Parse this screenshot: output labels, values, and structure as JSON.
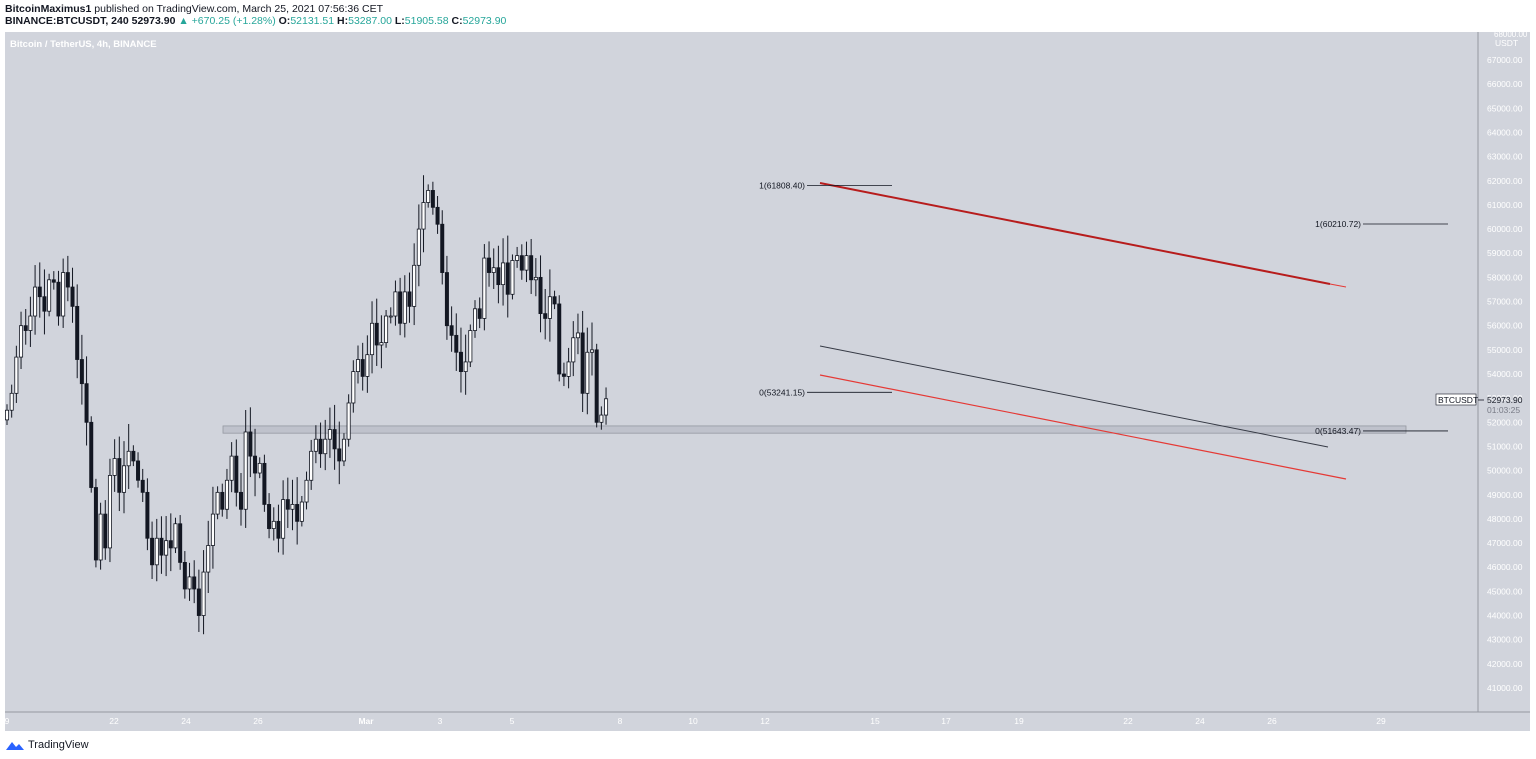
{
  "header": {
    "author": "BitcoinMaximus1",
    "published_text": "published on TradingView.com, March 25, 2021 07:56:36 CET",
    "symbol_interval": "BINANCE:BTCUSDT, 240",
    "last": "52973.90",
    "change_arrow": "▲",
    "change": "+670.25 (+1.28%)",
    "o_label": "O:",
    "o": "52131.51",
    "h_label": "H:",
    "h": "53287.00",
    "l_label": "L:",
    "l": "51905.58",
    "c_label": "C:",
    "c": "52973.90"
  },
  "pane_title": "Bitcoin / TetherUS, 4h, BINANCE",
  "axis_unit": "USDT",
  "axis_top_partial": "68000.00",
  "price_tag": {
    "symbol": "BTCUSDT",
    "price": "52973.90",
    "countdown": "01:03:25"
  },
  "footer": {
    "brand": "TradingView"
  },
  "colors": {
    "bg": "#d1d4dc",
    "candle_up": "#ffffff",
    "candle_down": "#131722",
    "red_line": "#e53935",
    "dark_red_line": "#b71c1c",
    "zone": "#bfc2cc"
  },
  "chart_data": {
    "type": "candlestick",
    "symbol": "BTCUSDT",
    "ylim": [
      40000,
      68000
    ],
    "yticks": [
      41000,
      42000,
      43000,
      44000,
      45000,
      46000,
      47000,
      48000,
      49000,
      50000,
      51000,
      52000,
      53000,
      54000,
      55000,
      56000,
      57000,
      58000,
      59000,
      60000,
      61000,
      62000,
      63000,
      64000,
      65000,
      66000,
      67000
    ],
    "ytick_format": "0.00",
    "xticks": [
      "9",
      "22",
      "24",
      "26",
      "Mar",
      "3",
      "5",
      "8",
      "10",
      "12",
      "15",
      "17",
      "19",
      "22",
      "24",
      "26",
      "29"
    ],
    "fib_levels": [
      {
        "label": "1(61808.40)",
        "value": 61808.4
      },
      {
        "label": "0(53241.15)",
        "value": 53241.15
      },
      {
        "label": "1(60210.72)",
        "value": 60210.72
      },
      {
        "label": "0(51643.47)",
        "value": 51643.47
      }
    ],
    "support_zone": [
      51550,
      51850
    ],
    "close_series": [
      52500,
      53200,
      54700,
      56000,
      55800,
      56400,
      57600,
      57200,
      56600,
      57900,
      57800,
      56400,
      58200,
      57600,
      56800,
      54600,
      53600,
      52000,
      49300,
      46300,
      48200,
      46800,
      49800,
      50500,
      49100,
      50200,
      50800,
      50400,
      49600,
      49100,
      47200,
      46100,
      47200,
      46500,
      47100,
      46800,
      47800,
      46200,
      45100,
      45600,
      45100,
      44000,
      45800,
      46900,
      48200,
      49100,
      48400,
      49600,
      50600,
      49100,
      48400,
      51600,
      50600,
      49900,
      50300,
      48600,
      47600,
      47900,
      47200,
      48800,
      48400,
      48600,
      47900,
      48700,
      49600,
      50800,
      51300,
      50700,
      51300,
      51700,
      50900,
      50400,
      51300,
      52800,
      54100,
      54600,
      53900,
      54800,
      56100,
      55200,
      55300,
      56400,
      56400,
      57400,
      56100,
      57400,
      56800,
      58500,
      60000,
      61100,
      61600,
      60900,
      60200,
      58200,
      56000,
      55600,
      54900,
      54100,
      54500,
      55800,
      56700,
      56300,
      58800,
      58200,
      58400,
      57700,
      58600,
      57300,
      58700,
      58900,
      58300,
      58900,
      57900,
      58000,
      56500,
      56300,
      57200,
      56900,
      54000,
      53900,
      54500,
      55500,
      55700,
      53200,
      54900,
      55000,
      52000,
      52300,
      52973.9
    ]
  }
}
